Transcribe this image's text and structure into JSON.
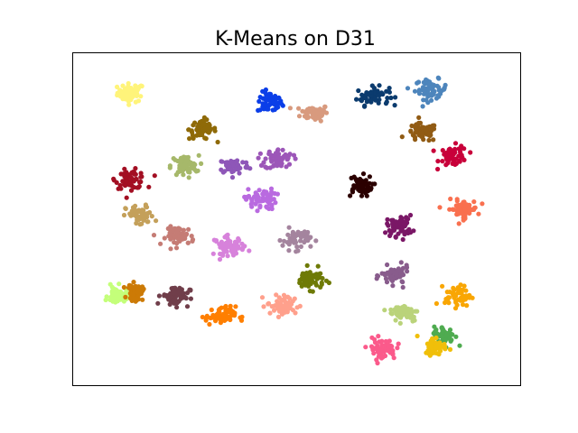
{
  "chart_data": {
    "type": "scatter",
    "title": "K-Means on D31",
    "xlabel": "",
    "ylabel": "",
    "xlim": [
      0,
      100
    ],
    "ylim": [
      0,
      100
    ],
    "axes_visible": false,
    "grid": false,
    "legend": "none",
    "points_per_cluster": 60,
    "series": [
      {
        "color": "#fff47a",
        "center": [
          13,
          88
        ],
        "spread": [
          2.5,
          2.3
        ]
      },
      {
        "color": "#0b3ee8",
        "center": [
          44,
          85
        ],
        "spread": [
          2.3,
          2.6
        ]
      },
      {
        "color": "#d89a7e",
        "center": [
          54,
          82
        ],
        "spread": [
          2.6,
          2.0
        ]
      },
      {
        "color": "#0b3b6e",
        "center": [
          67,
          87
        ],
        "spread": [
          3.0,
          2.3
        ]
      },
      {
        "color": "#4d85bc",
        "center": [
          80,
          89
        ],
        "spread": [
          3.0,
          2.5
        ]
      },
      {
        "color": "#8f6a08",
        "center": [
          29,
          77
        ],
        "spread": [
          2.5,
          2.5
        ]
      },
      {
        "color": "#915b14",
        "center": [
          78,
          76
        ],
        "spread": [
          2.8,
          2.3
        ]
      },
      {
        "color": "#c8003a",
        "center": [
          85,
          69
        ],
        "spread": [
          2.6,
          2.6
        ]
      },
      {
        "color": "#a30f23",
        "center": [
          13,
          62
        ],
        "spread": [
          2.8,
          2.3
        ]
      },
      {
        "color": "#a6b86a",
        "center": [
          25,
          66
        ],
        "spread": [
          2.6,
          2.6
        ]
      },
      {
        "color": "#8e57b8",
        "center": [
          36,
          66
        ],
        "spread": [
          2.8,
          2.0
        ]
      },
      {
        "color": "#9c56b8",
        "center": [
          46,
          68
        ],
        "spread": [
          2.6,
          2.6
        ]
      },
      {
        "color": "#2b0000",
        "center": [
          64,
          60
        ],
        "spread": [
          2.4,
          2.6
        ]
      },
      {
        "color": "#b96ae0",
        "center": [
          42,
          56
        ],
        "spread": [
          2.8,
          2.6
        ]
      },
      {
        "color": "#c4a05a",
        "center": [
          15,
          51
        ],
        "spread": [
          2.6,
          2.6
        ]
      },
      {
        "color": "#7a1766",
        "center": [
          73,
          48
        ],
        "spread": [
          2.4,
          2.6
        ]
      },
      {
        "color": "#f9704f",
        "center": [
          87,
          53
        ],
        "spread": [
          2.8,
          2.3
        ]
      },
      {
        "color": "#c57c75",
        "center": [
          24,
          45
        ],
        "spread": [
          2.6,
          2.3
        ]
      },
      {
        "color": "#d782db",
        "center": [
          35,
          42
        ],
        "spread": [
          2.8,
          2.3
        ]
      },
      {
        "color": "#a4849e",
        "center": [
          50,
          44
        ],
        "spread": [
          2.6,
          2.6
        ]
      },
      {
        "color": "#6e7a06",
        "center": [
          53,
          32
        ],
        "spread": [
          2.6,
          2.5
        ]
      },
      {
        "color": "#885c8c",
        "center": [
          72,
          33
        ],
        "spread": [
          2.6,
          2.3
        ]
      },
      {
        "color": "#c4ff7a",
        "center": [
          10,
          27
        ],
        "spread": [
          1.8,
          2.3
        ]
      },
      {
        "color": "#cc7a06",
        "center": [
          14,
          28
        ],
        "spread": [
          1.4,
          2.0
        ]
      },
      {
        "color": "#703e4a",
        "center": [
          23,
          27
        ],
        "spread": [
          2.6,
          2.5
        ]
      },
      {
        "color": "#ff7f00",
        "center": [
          33,
          21
        ],
        "spread": [
          2.8,
          2.3
        ]
      },
      {
        "color": "#ffa08c",
        "center": [
          47,
          24
        ],
        "spread": [
          3.0,
          2.6
        ]
      },
      {
        "color": "#f9a604",
        "center": [
          86,
          27
        ],
        "spread": [
          2.4,
          2.6
        ]
      },
      {
        "color": "#bad37a",
        "center": [
          74,
          22
        ],
        "spread": [
          2.8,
          2.3
        ]
      },
      {
        "color": "#4fab50",
        "center": [
          83,
          15
        ],
        "spread": [
          2.0,
          2.3
        ]
      },
      {
        "color": "#f0bf0a",
        "center": [
          81,
          12
        ],
        "spread": [
          2.0,
          2.3
        ]
      },
      {
        "color": "#fb5a8b",
        "center": [
          69,
          11
        ],
        "spread": [
          2.6,
          2.6
        ]
      }
    ]
  }
}
